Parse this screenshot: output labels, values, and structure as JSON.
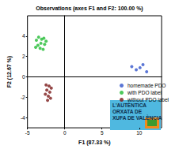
{
  "chart_data": {
    "type": "scatter",
    "title": "Observations (axes F1 and F2: 100.00 %)",
    "x_label": "F1 (87.33 %)",
    "y_label": "F2 (12.67 %)",
    "xlim": [
      -5,
      13
    ],
    "ylim": [
      -5,
      6
    ],
    "xticks": [
      -5,
      0,
      5,
      10
    ],
    "yticks": [
      -4,
      -2,
      0,
      2,
      4
    ],
    "grid": false,
    "legend": "right",
    "marker": "circle",
    "series": [
      {
        "name": "homemade PDO",
        "color": "#3355cc",
        "x": [
          9.0,
          9.6,
          10.1,
          10.5,
          11.0
        ],
        "values": [
          1.0,
          0.7,
          0.9,
          1.2,
          0.5
        ]
      },
      {
        "name": "with PDO label",
        "color": "#22bb33",
        "x": [
          -3.8,
          -3.5,
          -3.1,
          -2.8,
          -3.6,
          -3.2,
          -2.7,
          -3.9,
          -3.3,
          -2.9,
          -2.5
        ],
        "values": [
          3.6,
          3.9,
          3.7,
          3.8,
          3.1,
          3.3,
          3.2,
          2.9,
          2.8,
          2.7,
          3.5
        ]
      },
      {
        "name": "without PDO label",
        "color": "#7a1a1a",
        "x": [
          -2.5,
          -2.1,
          -1.8,
          -2.4,
          -2.0,
          -2.6,
          -2.2,
          -1.9,
          -2.3
        ],
        "values": [
          -0.8,
          -0.9,
          -1.1,
          -1.3,
          -1.5,
          -1.7,
          -1.9,
          -2.1,
          -2.3
        ]
      }
    ],
    "annotations": [
      "L'AUTÈNTICA",
      "ORXATA DE",
      "XUFA DE VALÈNCIA"
    ]
  }
}
